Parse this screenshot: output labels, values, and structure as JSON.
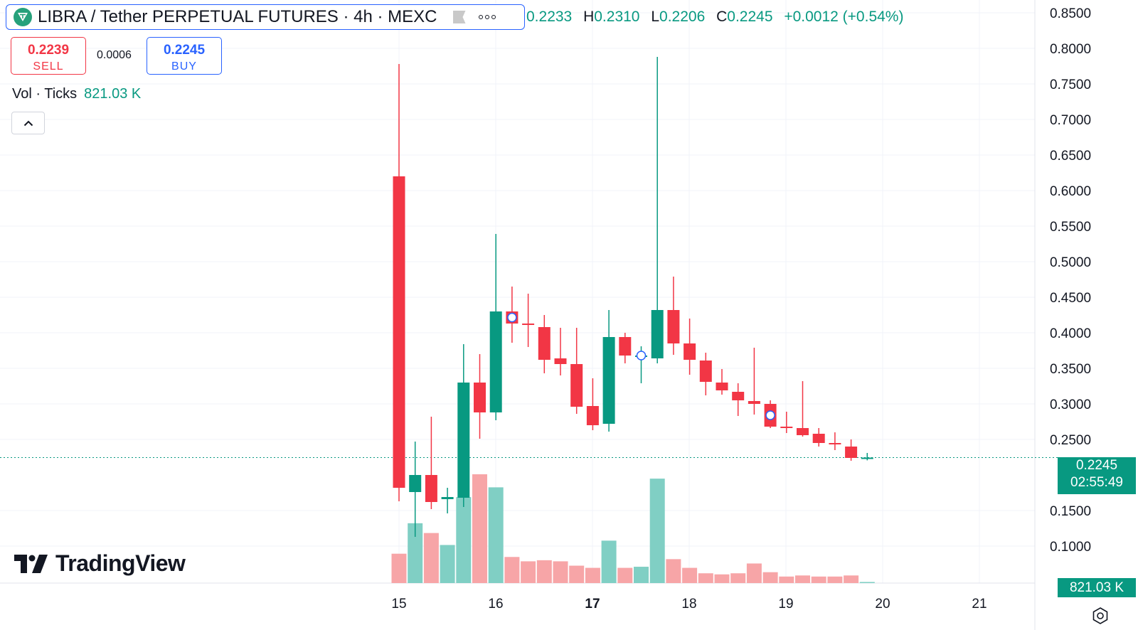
{
  "header": {
    "title": "LIBRA / Tether PERPETUAL FUTURES · 4h · MEXC",
    "icons": [
      "libra-coin-icon",
      "flag-icon",
      "more-options-icon"
    ],
    "ohlc": {
      "o_key": "",
      "o": "0.2233",
      "h_key": "H",
      "h": "0.2310",
      "l_key": "L",
      "l": "0.2206",
      "c_key": "C",
      "c": "0.2245",
      "change": "+0.0012 (+0.54%)"
    }
  },
  "trade": {
    "sell_price": "0.2239",
    "sell_label": "SELL",
    "spread": "0.0006",
    "buy_price": "0.2245",
    "buy_label": "BUY"
  },
  "volume": {
    "label": "Vol · Ticks",
    "value": "821.03 K"
  },
  "price_tag": {
    "price": "0.2245",
    "countdown": "02:55:49"
  },
  "volume_tag": "821.03 K",
  "logo": "TradingView",
  "colors": {
    "up": "#089981",
    "down": "#f23645",
    "up_vol": "#80cfc4",
    "down_vol": "#f7a5a7",
    "accent": "#2962ff"
  },
  "chart_data": {
    "type": "candlestick",
    "y_ticks": [
      "0.8500",
      "0.8000",
      "0.7500",
      "0.7000",
      "0.6500",
      "0.6000",
      "0.5500",
      "0.5000",
      "0.4500",
      "0.4000",
      "0.3500",
      "0.3000",
      "0.2500",
      "0.1500",
      "0.1000"
    ],
    "x_ticks": [
      "15",
      "16",
      "17",
      "18",
      "19",
      "20",
      "21"
    ],
    "ylim": [
      0.05,
      0.85
    ],
    "last_price": 0.2245,
    "candles": [
      {
        "o": 0.62,
        "h": 0.778,
        "l": 0.163,
        "c": 0.182,
        "v": 0.27
      },
      {
        "o": 0.176,
        "h": 0.247,
        "l": 0.113,
        "c": 0.2,
        "v": 0.55
      },
      {
        "o": 0.2,
        "h": 0.282,
        "l": 0.152,
        "c": 0.162,
        "v": 0.46
      },
      {
        "o": 0.166,
        "h": 0.182,
        "l": 0.146,
        "c": 0.169,
        "v": 0.35
      },
      {
        "o": 0.168,
        "h": 0.384,
        "l": 0.155,
        "c": 0.33,
        "v": 0.79
      },
      {
        "o": 0.33,
        "h": 0.37,
        "l": 0.251,
        "c": 0.288,
        "v": 1.0
      },
      {
        "o": 0.288,
        "h": 0.539,
        "l": 0.277,
        "c": 0.43,
        "v": 0.88
      },
      {
        "o": 0.43,
        "h": 0.465,
        "l": 0.386,
        "c": 0.413,
        "v": 0.24
      },
      {
        "o": 0.413,
        "h": 0.455,
        "l": 0.38,
        "c": 0.411,
        "v": 0.2
      },
      {
        "o": 0.408,
        "h": 0.425,
        "l": 0.343,
        "c": 0.362,
        "v": 0.21
      },
      {
        "o": 0.364,
        "h": 0.407,
        "l": 0.34,
        "c": 0.356,
        "v": 0.2
      },
      {
        "o": 0.356,
        "h": 0.407,
        "l": 0.286,
        "c": 0.296,
        "v": 0.16
      },
      {
        "o": 0.297,
        "h": 0.336,
        "l": 0.263,
        "c": 0.27,
        "v": 0.14
      },
      {
        "o": 0.272,
        "h": 0.432,
        "l": 0.261,
        "c": 0.394,
        "v": 0.39
      },
      {
        "o": 0.394,
        "h": 0.4,
        "l": 0.357,
        "c": 0.368,
        "v": 0.14
      },
      {
        "o": 0.368,
        "h": 0.381,
        "l": 0.329,
        "c": 0.368,
        "v": 0.15
      },
      {
        "o": 0.364,
        "h": 0.788,
        "l": 0.357,
        "c": 0.432,
        "v": 0.96
      },
      {
        "o": 0.432,
        "h": 0.479,
        "l": 0.369,
        "c": 0.385,
        "v": 0.22
      },
      {
        "o": 0.385,
        "h": 0.42,
        "l": 0.341,
        "c": 0.362,
        "v": 0.14
      },
      {
        "o": 0.361,
        "h": 0.372,
        "l": 0.312,
        "c": 0.331,
        "v": 0.09
      },
      {
        "o": 0.33,
        "h": 0.349,
        "l": 0.313,
        "c": 0.319,
        "v": 0.08
      },
      {
        "o": 0.317,
        "h": 0.329,
        "l": 0.283,
        "c": 0.305,
        "v": 0.09
      },
      {
        "o": 0.304,
        "h": 0.379,
        "l": 0.285,
        "c": 0.3,
        "v": 0.18
      },
      {
        "o": 0.3,
        "h": 0.305,
        "l": 0.266,
        "c": 0.268,
        "v": 0.1
      },
      {
        "o": 0.268,
        "h": 0.289,
        "l": 0.259,
        "c": 0.266,
        "v": 0.06
      },
      {
        "o": 0.266,
        "h": 0.332,
        "l": 0.254,
        "c": 0.256,
        "v": 0.07
      },
      {
        "o": 0.258,
        "h": 0.266,
        "l": 0.24,
        "c": 0.245,
        "v": 0.06
      },
      {
        "o": 0.245,
        "h": 0.26,
        "l": 0.235,
        "c": 0.244,
        "v": 0.06
      },
      {
        "o": 0.24,
        "h": 0.25,
        "l": 0.22,
        "c": 0.224,
        "v": 0.07
      },
      {
        "o": 0.2233,
        "h": 0.231,
        "l": 0.2206,
        "c": 0.2245,
        "v": 0.01
      }
    ],
    "event_markers": [
      7,
      15,
      23
    ]
  }
}
